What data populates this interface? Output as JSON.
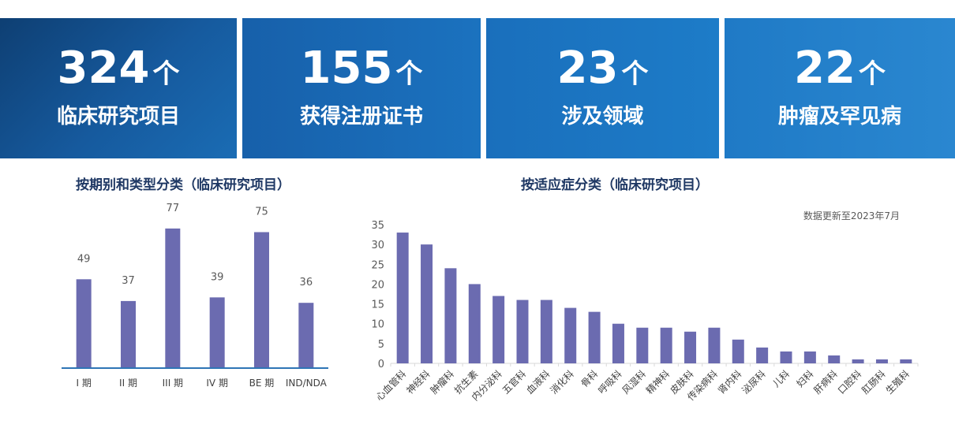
{
  "stats": [
    {
      "value": "324",
      "unit": "个",
      "label": "临床研究项目"
    },
    {
      "value": "155",
      "unit": "个",
      "label": "获得注册证书"
    },
    {
      "value": "23",
      "unit": "个",
      "label": "涉及领域"
    },
    {
      "value": "22",
      "unit": "个",
      "label": "肿瘤及罕见病"
    }
  ],
  "note": "数据更新至2023年7月",
  "colors": {
    "bar": "#6b6bb0",
    "axis_left": "#2e75b6",
    "text": "#595959",
    "title": "#1f3864"
  },
  "chart_data": [
    {
      "type": "bar",
      "title": "按期别和类型分类（临床研究项目）",
      "categories": [
        "I 期",
        "II 期",
        "III 期",
        "IV 期",
        "BE 期",
        "IND/NDA"
      ],
      "values": [
        49,
        37,
        77,
        39,
        75,
        36
      ],
      "data_labels": true,
      "grid": false
    },
    {
      "type": "bar",
      "title": "按适应症分类（临床研究项目）",
      "categories": [
        "心血管科",
        "神经科",
        "肿瘤科",
        "抗生素",
        "内分泌科",
        "五官科",
        "血液科",
        "消化科",
        "骨科",
        "呼吸科",
        "风湿科",
        "精神科",
        "皮肤科",
        "传染病科",
        "肾内科",
        "泌尿科",
        "儿科",
        "妇科",
        "肝病科",
        "口腔科",
        "肛肠科",
        "生殖科"
      ],
      "values": [
        33,
        30,
        24,
        20,
        17,
        16,
        16,
        14,
        13,
        10,
        9,
        9,
        8,
        9,
        6,
        4,
        3,
        3,
        2,
        1,
        1,
        1
      ],
      "yticks": [
        0,
        5,
        10,
        15,
        20,
        25,
        30,
        35
      ],
      "ylim": [
        0,
        35
      ],
      "grid": false
    }
  ]
}
